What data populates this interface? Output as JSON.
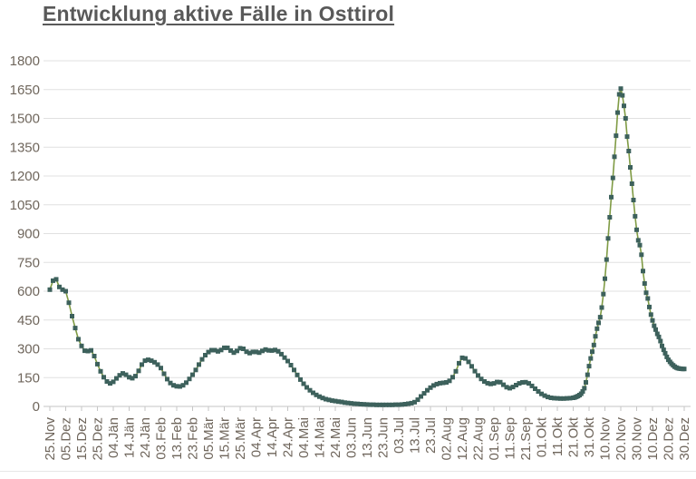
{
  "page_title": "Entwicklung aktive Fälle in Osttirol",
  "colors": {
    "title": "#595959",
    "line": "#7f9b44",
    "marker": "#3d615c",
    "grid": "#e0e0e0",
    "axis": "#c6c6c6",
    "tick": "#c6c6c6",
    "label": "#6f665c",
    "background": "#ffffff"
  },
  "chart_data": {
    "type": "line",
    "title": "Entwicklung aktive Fälle in Osttirol",
    "xlabel": "",
    "ylabel": "",
    "legend": "none",
    "grid": "horizontal",
    "marker_shape": "square",
    "ylim": [
      0,
      1800
    ],
    "y_ticks": [
      0,
      150,
      300,
      450,
      600,
      750,
      900,
      1050,
      1200,
      1350,
      1500,
      1650,
      1800
    ],
    "x_ticks": {
      "labels": [
        "25.Nov",
        "05.Dez",
        "15.Dez",
        "25.Dez",
        "04.Jän",
        "14.Jän",
        "24.Jän",
        "03.Feb",
        "13.Feb",
        "23.Feb",
        "05.Mär",
        "15.Mär",
        "25.Mär",
        "04.Apr",
        "14.Apr",
        "24.Apr",
        "04.Mai",
        "14.Mai",
        "24.Mai",
        "03.Jun",
        "13.Jun",
        "23.Jun",
        "03.Jul",
        "13.Jul",
        "23.Jul",
        "02.Aug",
        "12.Aug",
        "22.Aug",
        "01.Sep",
        "11.Sep",
        "21.Sep",
        "01.Okt",
        "11.Okt",
        "21.Okt",
        "31.Okt",
        "10.Nov",
        "20.Nov",
        "30.Nov",
        "10.Dez",
        "20.Dez",
        "30.Dez"
      ],
      "days": [
        0,
        10,
        20,
        30,
        40,
        50,
        60,
        70,
        80,
        90,
        100,
        110,
        120,
        130,
        140,
        150,
        160,
        170,
        180,
        190,
        200,
        210,
        220,
        230,
        240,
        250,
        260,
        270,
        280,
        290,
        300,
        310,
        320,
        330,
        340,
        350,
        360,
        370,
        380,
        390,
        400
      ]
    },
    "series": [
      {
        "name": "aktive Fälle Osttirol",
        "x_unit": "Tag (0 = 25.Nov)",
        "points": [
          [
            0,
            608
          ],
          [
            2,
            655
          ],
          [
            4,
            662
          ],
          [
            6,
            622
          ],
          [
            8,
            608
          ],
          [
            10,
            600
          ],
          [
            12,
            540
          ],
          [
            14,
            470
          ],
          [
            16,
            408
          ],
          [
            18,
            350
          ],
          [
            20,
            315
          ],
          [
            22,
            290
          ],
          [
            24,
            288
          ],
          [
            26,
            292
          ],
          [
            28,
            262
          ],
          [
            30,
            220
          ],
          [
            32,
            183
          ],
          [
            34,
            152
          ],
          [
            36,
            130
          ],
          [
            38,
            120
          ],
          [
            40,
            128
          ],
          [
            42,
            146
          ],
          [
            44,
            162
          ],
          [
            46,
            172
          ],
          [
            48,
            165
          ],
          [
            50,
            152
          ],
          [
            52,
            147
          ],
          [
            54,
            158
          ],
          [
            56,
            185
          ],
          [
            58,
            218
          ],
          [
            60,
            238
          ],
          [
            62,
            243
          ],
          [
            64,
            238
          ],
          [
            66,
            230
          ],
          [
            68,
            218
          ],
          [
            70,
            200
          ],
          [
            72,
            170
          ],
          [
            74,
            142
          ],
          [
            76,
            122
          ],
          [
            78,
            110
          ],
          [
            80,
            105
          ],
          [
            82,
            104
          ],
          [
            84,
            110
          ],
          [
            86,
            124
          ],
          [
            88,
            143
          ],
          [
            90,
            165
          ],
          [
            92,
            190
          ],
          [
            94,
            218
          ],
          [
            96,
            245
          ],
          [
            98,
            267
          ],
          [
            100,
            283
          ],
          [
            102,
            293
          ],
          [
            104,
            293
          ],
          [
            106,
            287
          ],
          [
            108,
            294
          ],
          [
            110,
            305
          ],
          [
            112,
            305
          ],
          [
            114,
            291
          ],
          [
            116,
            280
          ],
          [
            118,
            289
          ],
          [
            120,
            303
          ],
          [
            122,
            300
          ],
          [
            124,
            285
          ],
          [
            126,
            278
          ],
          [
            128,
            284
          ],
          [
            130,
            284
          ],
          [
            132,
            280
          ],
          [
            134,
            289
          ],
          [
            136,
            296
          ],
          [
            138,
            292
          ],
          [
            140,
            291
          ],
          [
            142,
            294
          ],
          [
            144,
            287
          ],
          [
            146,
            272
          ],
          [
            148,
            254
          ],
          [
            150,
            236
          ],
          [
            152,
            215
          ],
          [
            154,
            190
          ],
          [
            156,
            164
          ],
          [
            158,
            140
          ],
          [
            160,
            118
          ],
          [
            162,
            99
          ],
          [
            164,
            84
          ],
          [
            166,
            71
          ],
          [
            168,
            60
          ],
          [
            170,
            51
          ],
          [
            172,
            44
          ],
          [
            174,
            38
          ],
          [
            176,
            34
          ],
          [
            178,
            30
          ],
          [
            180,
            28
          ],
          [
            182,
            25
          ],
          [
            184,
            23
          ],
          [
            186,
            20
          ],
          [
            188,
            18
          ],
          [
            190,
            16
          ],
          [
            192,
            14
          ],
          [
            194,
            13
          ],
          [
            196,
            12
          ],
          [
            198,
            11
          ],
          [
            200,
            10
          ],
          [
            202,
            9
          ],
          [
            204,
            9
          ],
          [
            206,
            8
          ],
          [
            208,
            8
          ],
          [
            210,
            8
          ],
          [
            212,
            8
          ],
          [
            214,
            8
          ],
          [
            216,
            8
          ],
          [
            218,
            9
          ],
          [
            220,
            9
          ],
          [
            222,
            10
          ],
          [
            224,
            12
          ],
          [
            226,
            14
          ],
          [
            228,
            17
          ],
          [
            230,
            22
          ],
          [
            232,
            35
          ],
          [
            234,
            52
          ],
          [
            236,
            68
          ],
          [
            238,
            84
          ],
          [
            240,
            98
          ],
          [
            242,
            109
          ],
          [
            244,
            116
          ],
          [
            246,
            121
          ],
          [
            248,
            123
          ],
          [
            250,
            125
          ],
          [
            252,
            133
          ],
          [
            254,
            152
          ],
          [
            256,
            183
          ],
          [
            258,
            225
          ],
          [
            260,
            253
          ],
          [
            262,
            250
          ],
          [
            264,
            232
          ],
          [
            266,
            209
          ],
          [
            268,
            184
          ],
          [
            270,
            161
          ],
          [
            272,
            143
          ],
          [
            274,
            130
          ],
          [
            276,
            121
          ],
          [
            278,
            117
          ],
          [
            280,
            120
          ],
          [
            282,
            127
          ],
          [
            284,
            126
          ],
          [
            286,
            113
          ],
          [
            288,
            100
          ],
          [
            290,
            95
          ],
          [
            292,
            101
          ],
          [
            294,
            111
          ],
          [
            296,
            120
          ],
          [
            298,
            125
          ],
          [
            300,
            126
          ],
          [
            302,
            120
          ],
          [
            304,
            107
          ],
          [
            306,
            92
          ],
          [
            308,
            78
          ],
          [
            310,
            65
          ],
          [
            312,
            56
          ],
          [
            314,
            49
          ],
          [
            316,
            45
          ],
          [
            318,
            43
          ],
          [
            320,
            42
          ],
          [
            322,
            41
          ],
          [
            324,
            41
          ],
          [
            326,
            42
          ],
          [
            328,
            43
          ],
          [
            330,
            45
          ],
          [
            331,
            47
          ],
          [
            332,
            50
          ],
          [
            333,
            54
          ],
          [
            334,
            59
          ],
          [
            335,
            66
          ],
          [
            336,
            78
          ],
          [
            337,
            95
          ],
          [
            338,
            125
          ],
          [
            339,
            165
          ],
          [
            340,
            210
          ],
          [
            341,
            250
          ],
          [
            342,
            285
          ],
          [
            343,
            320
          ],
          [
            344,
            365
          ],
          [
            345,
            405
          ],
          [
            346,
            435
          ],
          [
            347,
            465
          ],
          [
            348,
            515
          ],
          [
            349,
            585
          ],
          [
            350,
            665
          ],
          [
            351,
            765
          ],
          [
            352,
            875
          ],
          [
            353,
            985
          ],
          [
            354,
            1090
          ],
          [
            355,
            1190
          ],
          [
            356,
            1300
          ],
          [
            357,
            1410
          ],
          [
            358,
            1530
          ],
          [
            359,
            1625
          ],
          [
            360,
            1655
          ],
          [
            361,
            1620
          ],
          [
            362,
            1565
          ],
          [
            363,
            1500
          ],
          [
            364,
            1405
          ],
          [
            365,
            1330
          ],
          [
            366,
            1245
          ],
          [
            367,
            1160
          ],
          [
            368,
            1075
          ],
          [
            369,
            990
          ],
          [
            370,
            920
          ],
          [
            371,
            865
          ],
          [
            372,
            840
          ],
          [
            373,
            790
          ],
          [
            374,
            705
          ],
          [
            375,
            640
          ],
          [
            376,
            592
          ],
          [
            377,
            562
          ],
          [
            378,
            518
          ],
          [
            379,
            478
          ],
          [
            380,
            448
          ],
          [
            381,
            420
          ],
          [
            382,
            400
          ],
          [
            383,
            378
          ],
          [
            384,
            362
          ],
          [
            385,
            340
          ],
          [
            386,
            315
          ],
          [
            387,
            295
          ],
          [
            388,
            277
          ],
          [
            389,
            258
          ],
          [
            390,
            243
          ],
          [
            391,
            232
          ],
          [
            392,
            222
          ],
          [
            393,
            214
          ],
          [
            394,
            207
          ],
          [
            395,
            202
          ],
          [
            396,
            199
          ],
          [
            397,
            197
          ],
          [
            398,
            196
          ],
          [
            399,
            195
          ],
          [
            400,
            195
          ]
        ]
      }
    ]
  }
}
